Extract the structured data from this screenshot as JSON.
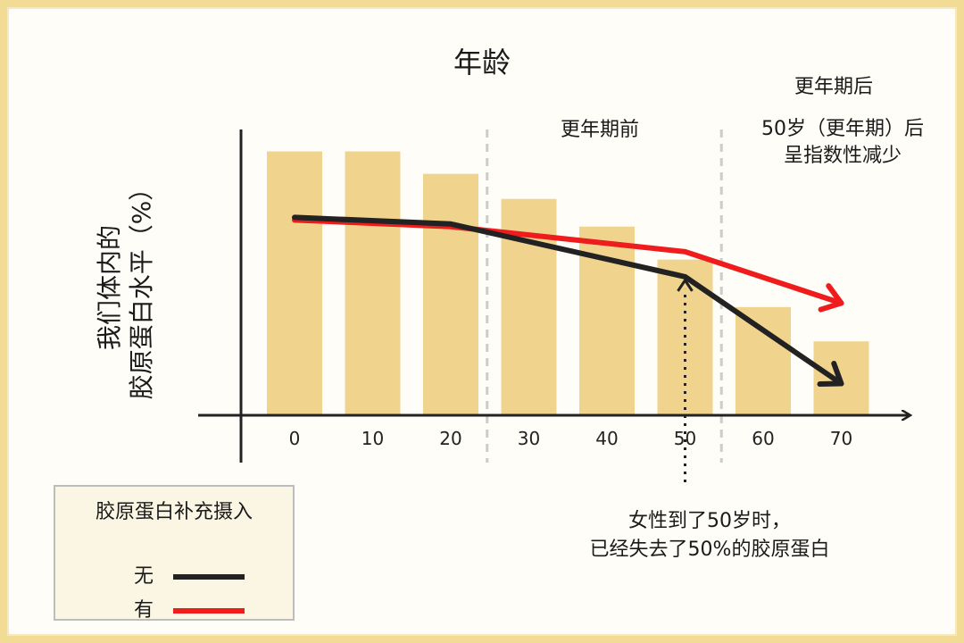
{
  "title": "年龄",
  "ylabel_lines": [
    "我们体内的",
    "胶原蛋白水平（%）"
  ],
  "zones": {
    "pre": "更年期前",
    "post": "更年期后",
    "post_note_lines": [
      "50岁（更年期）后",
      "呈指数性减少"
    ]
  },
  "callout_lines": [
    "女性到了50岁时，",
    "已经失去了50%的胶原蛋白"
  ],
  "legend": {
    "title": "胶原蛋白补充摄入",
    "items": [
      {
        "label": "无",
        "color": "#222222"
      },
      {
        "label": "有",
        "color": "#ee1c1c"
      }
    ]
  },
  "colors": {
    "bar": "#f0d48e",
    "axis": "#222222",
    "divider": "#cccccc",
    "background": "#fffdf8",
    "frame": "#f2dc95"
  },
  "chart_data": {
    "type": "bar",
    "categories": [
      "0",
      "10",
      "20",
      "30",
      "40",
      "50",
      "60",
      "70"
    ],
    "values": [
      100,
      100,
      91.5,
      82,
      71.5,
      59,
      41,
      28
    ],
    "ylim": [
      0,
      110
    ],
    "series_lines": [
      {
        "name": "无",
        "color": "#222222",
        "x": [
          0,
          20,
          50,
          70
        ],
        "y": [
          75,
          72.5,
          52.5,
          12
        ]
      },
      {
        "name": "有",
        "color": "#ee1c1c",
        "x": [
          0,
          20,
          50,
          70
        ],
        "y": [
          74,
          71.5,
          62,
          42.5
        ]
      }
    ],
    "dividers": [
      25,
      55
    ],
    "grid": false,
    "legend_position": "bottom-left"
  }
}
